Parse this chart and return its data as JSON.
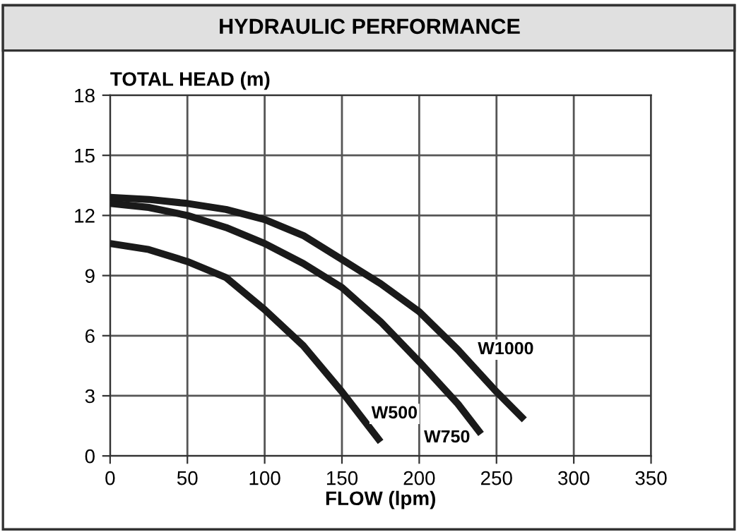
{
  "chart_data": {
    "type": "line",
    "title": "HYDRAULIC PERFORMANCE",
    "xlabel": "FLOW (lpm)",
    "ylabel": "TOTAL HEAD (m)",
    "xlim": [
      0,
      350
    ],
    "xticks": [
      0,
      50,
      100,
      150,
      200,
      250,
      300,
      350
    ],
    "ylim": [
      0,
      18
    ],
    "yticks": [
      0,
      3,
      6,
      9,
      12,
      15,
      18
    ],
    "grid": true,
    "line_style": "solid",
    "marker": "none",
    "series": [
      {
        "color": "#1a1a1a",
        "x": [
          0,
          25,
          50,
          75,
          100,
          125,
          150,
          175
        ],
        "values": [
          10.6,
          10.3,
          9.7,
          8.9,
          7.3,
          5.5,
          3.2,
          0.7
        ]
      },
      {
        "color": "#1a1a1a",
        "x": [
          0,
          25,
          50,
          75,
          100,
          125,
          150,
          175,
          200,
          225,
          240
        ],
        "values": [
          12.6,
          12.4,
          12.0,
          11.4,
          10.6,
          9.6,
          8.4,
          6.7,
          4.7,
          2.6,
          1.1
        ]
      },
      {
        "color": "#1a1a1a",
        "x": [
          0,
          25,
          50,
          75,
          100,
          125,
          150,
          175,
          200,
          225,
          250,
          268
        ],
        "values": [
          12.9,
          12.8,
          12.6,
          12.3,
          11.8,
          11.0,
          9.8,
          8.6,
          7.2,
          5.3,
          3.2,
          1.8
        ]
      }
    ],
    "annotations": [
      {
        "text": "W500",
        "x": 184,
        "y": 2.1
      },
      {
        "text": "W750",
        "x": 218,
        "y": 0.9
      },
      {
        "text": "W1000",
        "x": 256,
        "y": 5.3
      }
    ]
  }
}
